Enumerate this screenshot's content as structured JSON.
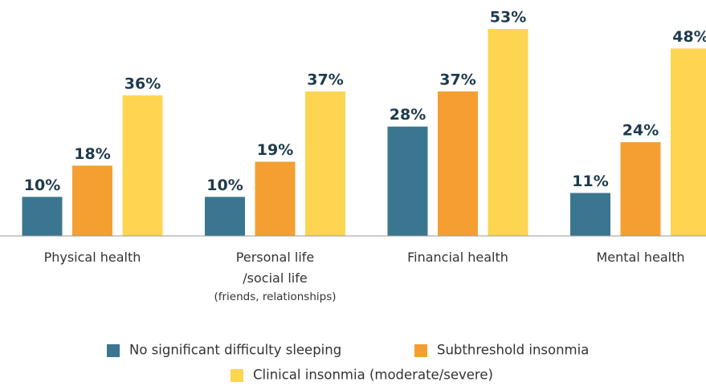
{
  "chart_data": {
    "type": "bar",
    "categories": [
      "Physical health",
      "Personal life\n/social life\n(friends, relationships)",
      "Financial health",
      "Mental health"
    ],
    "series": [
      {
        "name": "No significant difficulty sleeping",
        "color": "#3b7690",
        "values": [
          10,
          10,
          28,
          11
        ],
        "value_labels": [
          "10%",
          "10%",
          "28%",
          "11%"
        ]
      },
      {
        "name": "Subthreshold insonmia",
        "color": "#f59f32",
        "values": [
          18,
          19,
          37,
          24
        ],
        "value_labels": [
          "18%",
          "19%",
          "37%",
          "24%"
        ]
      },
      {
        "name": "Clinical insonmia (moderate/severe)",
        "color": "#fdd550",
        "values": [
          36,
          37,
          53,
          48
        ],
        "value_labels": [
          "36%",
          "37%",
          "53%",
          "48%"
        ]
      }
    ],
    "ylim": [
      0,
      60
    ],
    "legend": "bottom"
  }
}
